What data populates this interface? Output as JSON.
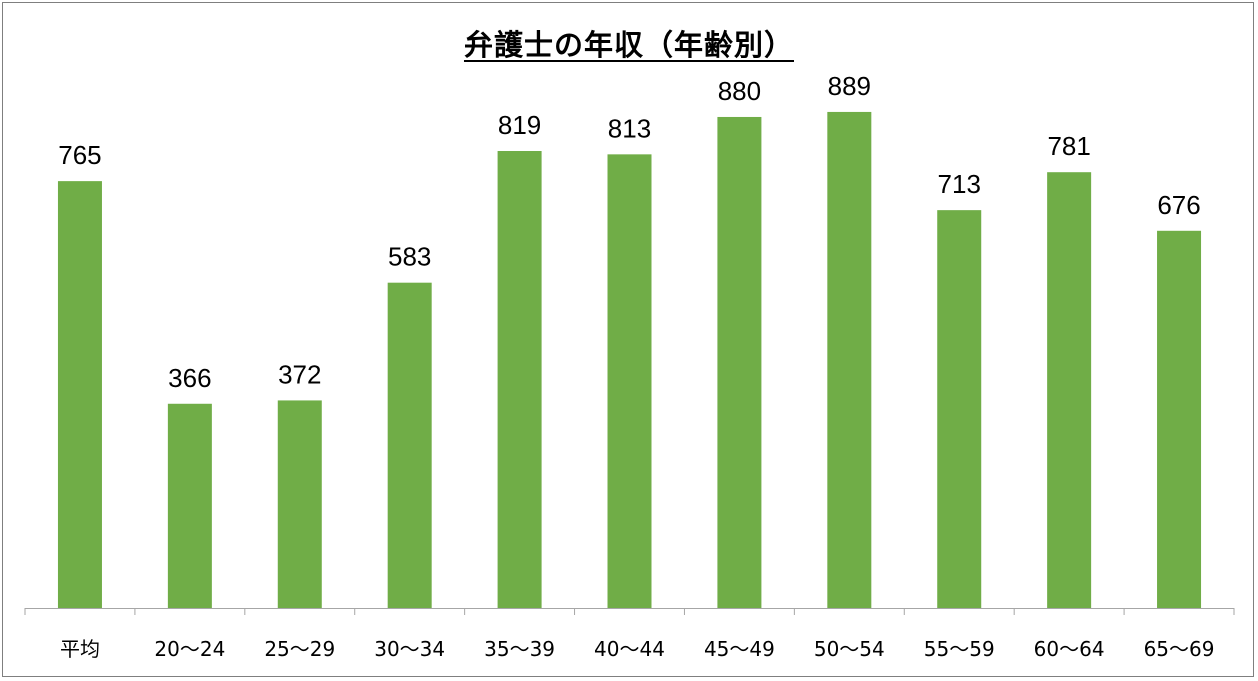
{
  "chart_data": {
    "type": "bar",
    "title": "弁護士の年収（年齢別）",
    "categories": [
      "平均",
      "20〜24",
      "25〜29",
      "30〜34",
      "35〜39",
      "40〜44",
      "45〜49",
      "50〜54",
      "55〜59",
      "60〜64",
      "65〜69"
    ],
    "values": [
      765,
      366,
      372,
      583,
      819,
      813,
      880,
      889,
      713,
      781,
      676
    ],
    "xlabel": "",
    "ylabel": "",
    "ylim": [
      0,
      1000
    ],
    "grid": false,
    "legend": "none",
    "bar_color": "#70ad47",
    "axis_color": "#a6a6a6"
  }
}
